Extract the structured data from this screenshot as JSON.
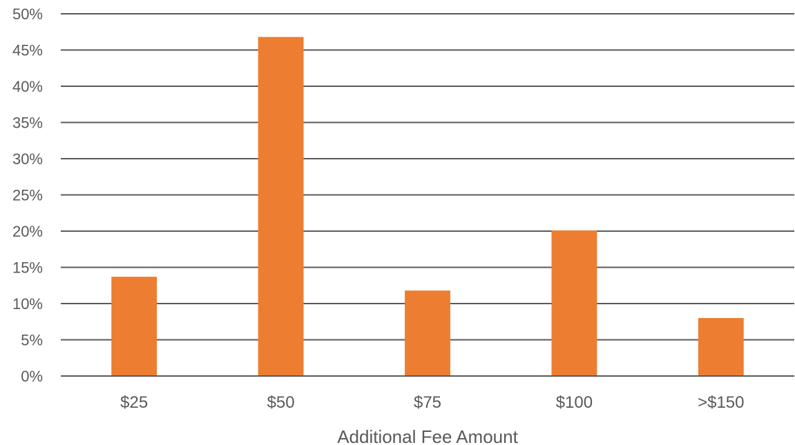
{
  "chart_data": {
    "type": "bar",
    "categories": [
      "$25",
      "$50",
      "$75",
      "$100",
      ">$150"
    ],
    "values": [
      13.7,
      46.8,
      11.8,
      20.1,
      8.0
    ],
    "xlabel": "Additional Fee Amount",
    "ylabel": "",
    "ylim": [
      0,
      50
    ],
    "y_ticks": [
      "0%",
      "5%",
      "10%",
      "15%",
      "20%",
      "25%",
      "30%",
      "35%",
      "40%",
      "45%",
      "50%"
    ],
    "y_tick_values": [
      0,
      5,
      10,
      15,
      20,
      25,
      30,
      35,
      40,
      45,
      50
    ],
    "grid": true,
    "legend": "none",
    "bar_color": "#ED7D31"
  }
}
